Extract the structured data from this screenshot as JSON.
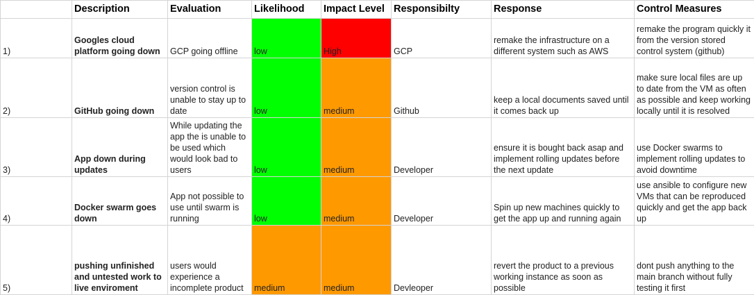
{
  "headers": {
    "blank": "",
    "description": "Description",
    "evaluation": "Evaluation",
    "likelihood": "Likelihood",
    "impact": "Impact Level",
    "responsibility": "Responsibilty",
    "response": "Response",
    "control": "Control Measures"
  },
  "colors": {
    "low": "#00ff00",
    "high": "#ff0000",
    "medium": "#ff9900",
    "grid": "#d4d4d4"
  },
  "rows": [
    {
      "num": "1)",
      "description": "Googles cloud platform going down",
      "evaluation": "GCP going offline",
      "likelihood": "low",
      "impact": "High",
      "responsibility": "GCP",
      "response": "remake the infrastructure on a different system such as AWS",
      "control": "remake the program quickly it from the version stored control system (github)"
    },
    {
      "num": "2)",
      "description": "GitHub going down",
      "evaluation": "version control is unable to stay up to date",
      "likelihood": "low",
      "impact": "medium",
      "responsibility": "Github",
      "response": "keep a local documents saved until it comes back up",
      "control": "make sure local files are up to date from the VM as often as possible and keep working locally until it is resolved"
    },
    {
      "num": "3)",
      "description": "App down during updates",
      "evaluation": "While updating the app the is unable to be used which would look bad to users",
      "likelihood": "low",
      "impact": "medium",
      "responsibility": "Developer",
      "response": "ensure it is bought back asap and implement rolling updates before the next update",
      "control": "use Docker swarms to implement rolling updates to avoid downtime"
    },
    {
      "num": "4)",
      "description": "Docker swarm goes down",
      "evaluation": "App not possible to use until swarm is running",
      "likelihood": "low",
      "impact": "medium",
      "responsibility": "Developer",
      "response": "Spin up new machines quickly to get the app up and running again",
      "control": "use ansible to configure new VMs that can be reproduced quickly and get the app back up"
    },
    {
      "num": "5)",
      "description": "pushing unfinished and untested work to live enviroment",
      "evaluation": "users would experience a incomplete product",
      "likelihood": "medium",
      "impact": "medium",
      "responsibility": "Devleoper",
      "response": "revert the product to a previous working instance as soon as possible",
      "control": "dont push anything to the main branch without fully testing it first"
    }
  ]
}
